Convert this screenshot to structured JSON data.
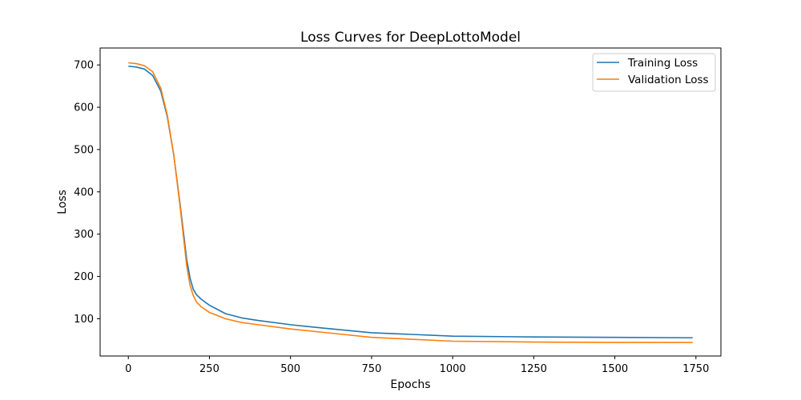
{
  "chart_data": {
    "type": "line",
    "title": "Loss Curves for DeepLottoModel",
    "xlabel": "Epochs",
    "ylabel": "Loss",
    "xlim": [
      -87,
      1827
    ],
    "ylim": [
      12,
      740
    ],
    "xticks": [
      0,
      250,
      500,
      750,
      1000,
      1250,
      1500,
      1750
    ],
    "yticks": [
      100,
      200,
      300,
      400,
      500,
      600,
      700
    ],
    "grid": false,
    "legend_position": "top-right",
    "series": [
      {
        "name": "Training Loss",
        "color": "#1f77b4",
        "x": [
          0,
          25,
          50,
          75,
          100,
          120,
          140,
          160,
          180,
          190,
          200,
          210,
          225,
          250,
          300,
          350,
          400,
          500,
          600,
          750,
          1000,
          1250,
          1500,
          1740
        ],
        "y": [
          697,
          695,
          690,
          675,
          638,
          578,
          487,
          368,
          240,
          197,
          170,
          157,
          146,
          132,
          112,
          102,
          96,
          86,
          78,
          67,
          59,
          57,
          56,
          55
        ]
      },
      {
        "name": "Validation Loss",
        "color": "#ff7f0e",
        "x": [
          0,
          25,
          50,
          75,
          100,
          120,
          140,
          160,
          180,
          190,
          200,
          210,
          225,
          250,
          300,
          350,
          400,
          500,
          600,
          750,
          1000,
          1250,
          1500,
          1740
        ],
        "y": [
          705,
          703,
          698,
          684,
          645,
          582,
          488,
          362,
          225,
          180,
          155,
          140,
          128,
          115,
          100,
          91,
          86,
          76,
          68,
          56,
          47,
          45,
          44,
          44
        ]
      }
    ]
  }
}
